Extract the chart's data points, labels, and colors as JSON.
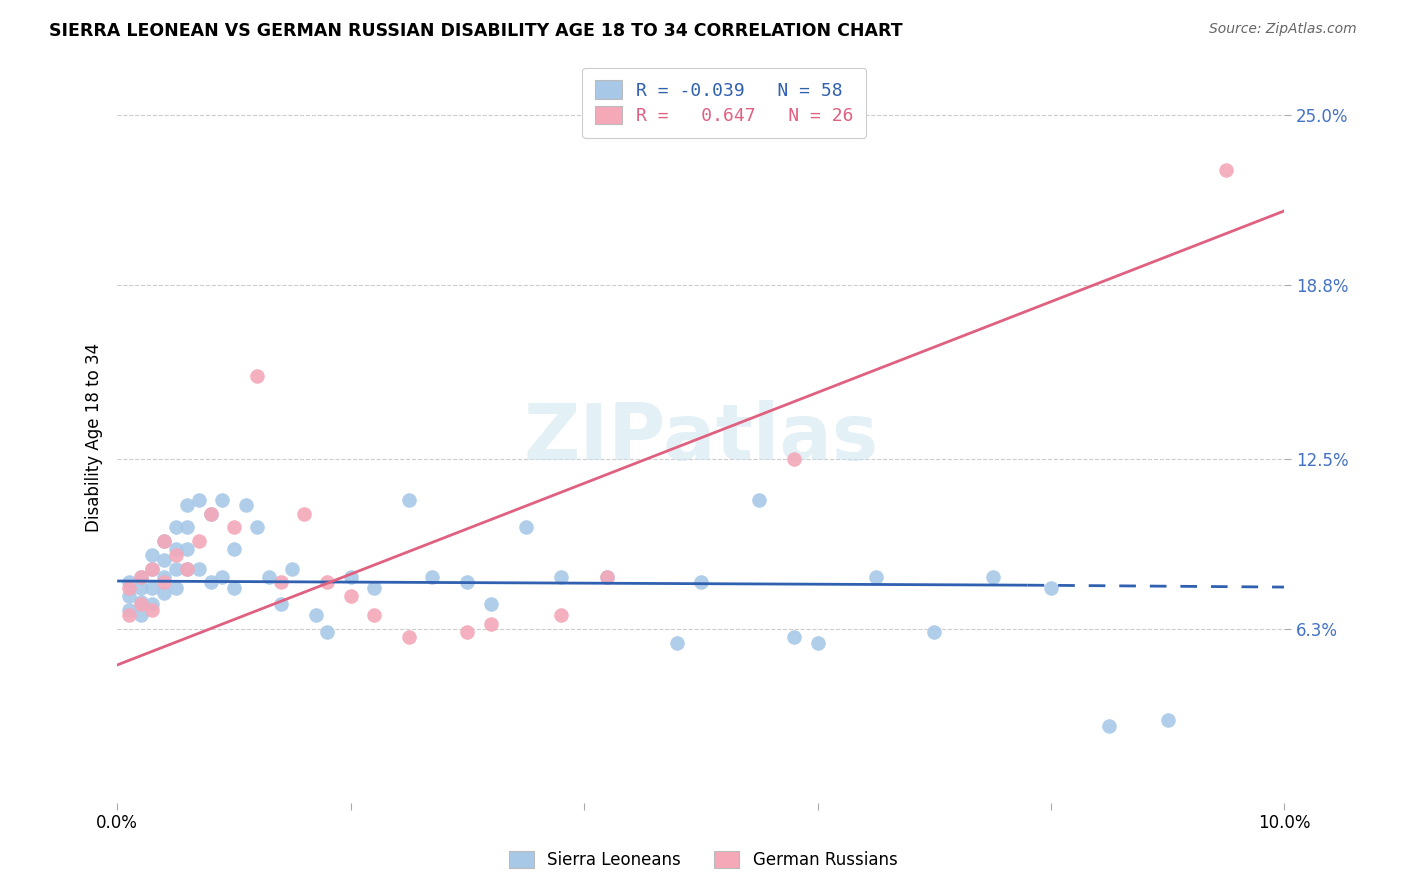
{
  "title": "SIERRA LEONEAN VS GERMAN RUSSIAN DISABILITY AGE 18 TO 34 CORRELATION CHART",
  "source": "Source: ZipAtlas.com",
  "ylabel": "Disability Age 18 to 34",
  "xlim": [
    0.0,
    0.1
  ],
  "ylim": [
    0.0,
    0.265
  ],
  "yticks": [
    0.063,
    0.125,
    0.188,
    0.25
  ],
  "ytick_labels": [
    "6.3%",
    "12.5%",
    "18.8%",
    "25.0%"
  ],
  "xticks": [
    0.0,
    0.02,
    0.04,
    0.06,
    0.08,
    0.1
  ],
  "xtick_labels": [
    "0.0%",
    "",
    "",
    "",
    "",
    "10.0%"
  ],
  "legend_label1": "Sierra Leoneans",
  "legend_label2": "German Russians",
  "R1": -0.039,
  "N1": 58,
  "R2": 0.647,
  "N2": 26,
  "blue_color": "#a8c8e8",
  "pink_color": "#f4a8b8",
  "blue_line_color": "#3060b0",
  "pink_line_color": "#e06080",
  "watermark": "ZIPatlas",
  "blue_scatter_x": [
    0.001,
    0.001,
    0.001,
    0.002,
    0.002,
    0.002,
    0.002,
    0.003,
    0.003,
    0.003,
    0.003,
    0.004,
    0.004,
    0.004,
    0.004,
    0.005,
    0.005,
    0.005,
    0.005,
    0.006,
    0.006,
    0.006,
    0.006,
    0.007,
    0.007,
    0.008,
    0.008,
    0.009,
    0.009,
    0.01,
    0.01,
    0.011,
    0.012,
    0.013,
    0.014,
    0.015,
    0.017,
    0.018,
    0.02,
    0.022,
    0.025,
    0.027,
    0.03,
    0.032,
    0.035,
    0.038,
    0.042,
    0.048,
    0.05,
    0.055,
    0.058,
    0.06,
    0.065,
    0.07,
    0.075,
    0.08,
    0.085,
    0.09
  ],
  "blue_scatter_y": [
    0.08,
    0.075,
    0.07,
    0.082,
    0.078,
    0.073,
    0.068,
    0.09,
    0.085,
    0.078,
    0.072,
    0.095,
    0.088,
    0.082,
    0.076,
    0.1,
    0.092,
    0.085,
    0.078,
    0.108,
    0.1,
    0.092,
    0.085,
    0.11,
    0.085,
    0.105,
    0.08,
    0.11,
    0.082,
    0.092,
    0.078,
    0.108,
    0.1,
    0.082,
    0.072,
    0.085,
    0.068,
    0.062,
    0.082,
    0.078,
    0.11,
    0.082,
    0.08,
    0.072,
    0.1,
    0.082,
    0.082,
    0.058,
    0.08,
    0.11,
    0.06,
    0.058,
    0.082,
    0.062,
    0.082,
    0.078,
    0.028,
    0.03
  ],
  "pink_scatter_x": [
    0.001,
    0.001,
    0.002,
    0.002,
    0.003,
    0.003,
    0.004,
    0.004,
    0.005,
    0.006,
    0.007,
    0.008,
    0.01,
    0.012,
    0.014,
    0.016,
    0.018,
    0.02,
    0.022,
    0.025,
    0.03,
    0.032,
    0.038,
    0.042,
    0.058,
    0.095
  ],
  "pink_scatter_y": [
    0.078,
    0.068,
    0.082,
    0.072,
    0.085,
    0.07,
    0.095,
    0.08,
    0.09,
    0.085,
    0.095,
    0.105,
    0.1,
    0.155,
    0.08,
    0.105,
    0.08,
    0.075,
    0.068,
    0.06,
    0.062,
    0.065,
    0.068,
    0.082,
    0.125,
    0.23
  ],
  "blue_line_x": [
    0.0,
    0.078,
    0.1
  ],
  "blue_line_y": [
    0.0805,
    0.079,
    0.0783
  ],
  "pink_line_x": [
    0.0,
    0.1
  ],
  "pink_line_y": [
    0.05,
    0.215
  ]
}
